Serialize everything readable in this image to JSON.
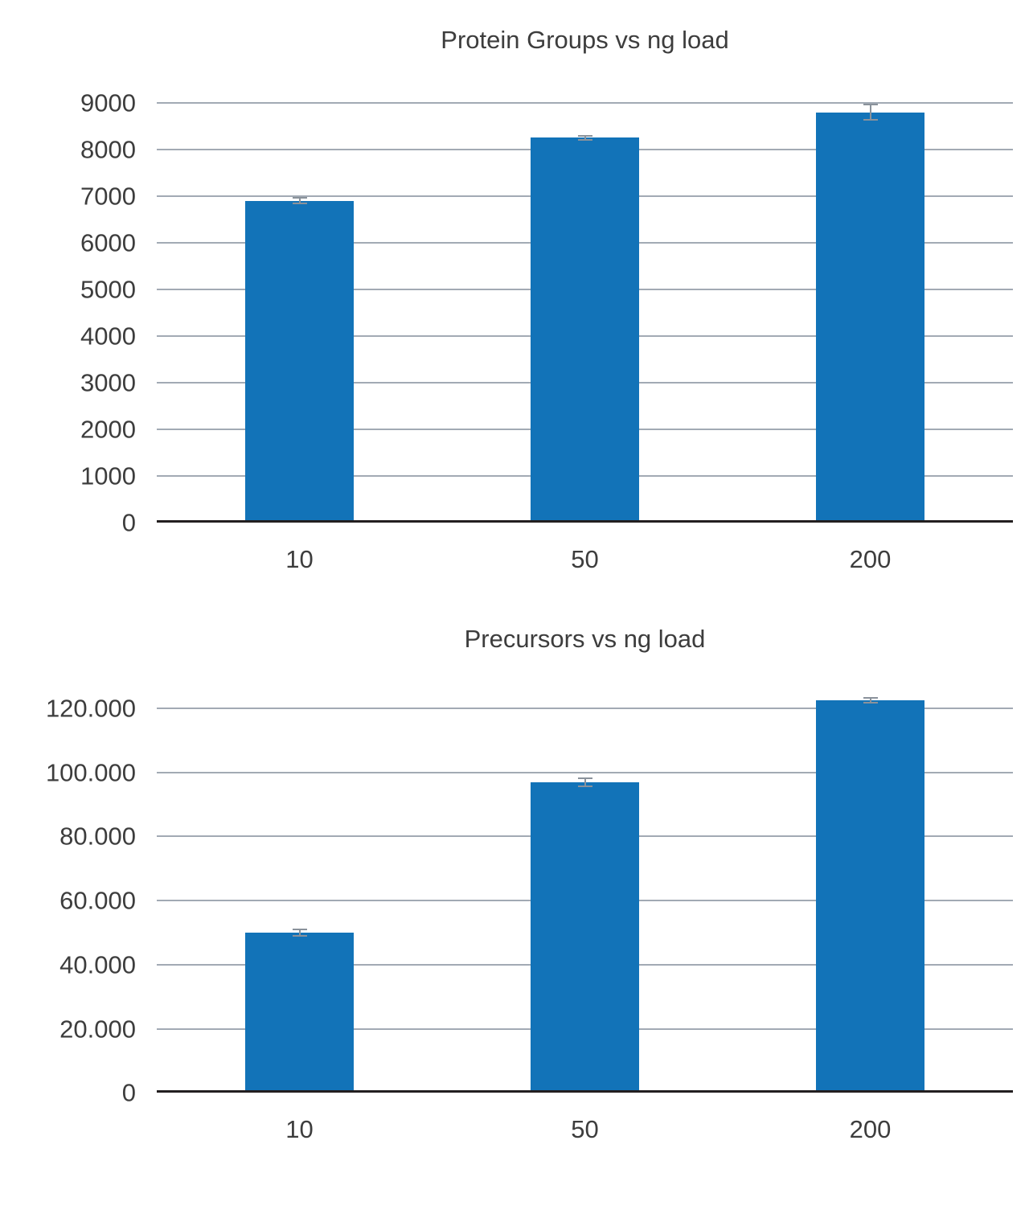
{
  "page": {
    "background_color": "#ffffff"
  },
  "colors": {
    "bar": "#1273b8",
    "gridline": "#a2aab4",
    "axis_line": "#231f20",
    "error_bar": "#8a929b",
    "text": "#3d3d3d"
  },
  "chart_data": [
    {
      "type": "bar",
      "title": "Protein Groups vs ng load",
      "categories": [
        "10",
        "50",
        "200"
      ],
      "values": [
        6900,
        8250,
        8800
      ],
      "error_bars": [
        80,
        60,
        180
      ],
      "xlabel": "",
      "ylabel": "",
      "ylim": [
        0,
        9000
      ],
      "yticks": [
        0,
        1000,
        2000,
        3000,
        4000,
        5000,
        6000,
        7000,
        8000,
        9000
      ],
      "ytick_labels": [
        "0",
        "1000",
        "2000",
        "3000",
        "4000",
        "5000",
        "6000",
        "7000",
        "8000",
        "9000"
      ],
      "grid": true,
      "legend": false,
      "bar_color": "#1273b8"
    },
    {
      "type": "bar",
      "title": "Precursors vs ng load",
      "categories": [
        "10",
        "50",
        "200"
      ],
      "values": [
        50000,
        97000,
        122500
      ],
      "error_bars": [
        1200,
        1500,
        900
      ],
      "xlabel": "",
      "ylabel": "",
      "ylim": [
        0,
        120000
      ],
      "yticks": [
        0,
        20000,
        40000,
        60000,
        80000,
        100000,
        120000
      ],
      "ytick_labels": [
        "0",
        "20.000",
        "40.000",
        "60.000",
        "80.000",
        "100.000",
        "120.000"
      ],
      "grid": true,
      "legend": false,
      "bar_color": "#1273b8"
    }
  ]
}
